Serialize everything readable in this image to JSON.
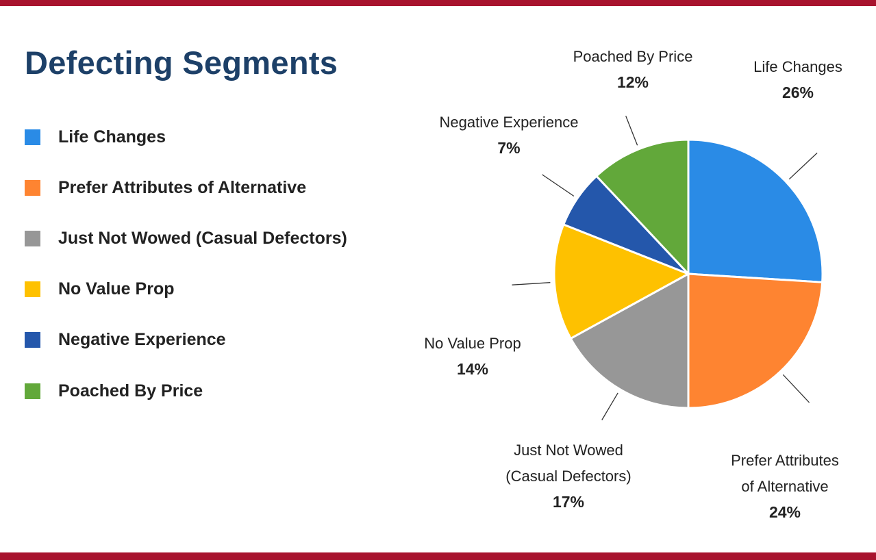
{
  "chart_data": {
    "type": "pie",
    "title": "Defecting Segments",
    "legend_position": "left",
    "slices": [
      {
        "name": "Life Changes",
        "label_lines": [
          "Life Changes"
        ],
        "pct_text": "26%",
        "value": 26,
        "color": "#2a8be6"
      },
      {
        "name": "Prefer Attributes of Alternative",
        "label_lines": [
          "Prefer Attributes",
          "of Alternative"
        ],
        "pct_text": "24%",
        "value": 24,
        "color": "#fe8431"
      },
      {
        "name": "Just Not Wowed (Casual Defectors)",
        "label_lines": [
          "Just Not Wowed",
          "(Casual Defectors)"
        ],
        "pct_text": "17%",
        "value": 17,
        "color": "#979797"
      },
      {
        "name": "No Value Prop",
        "label_lines": [
          "No Value Prop"
        ],
        "pct_text": "14%",
        "value": 14,
        "color": "#fec100"
      },
      {
        "name": "Negative Experience",
        "label_lines": [
          "Negative Experience"
        ],
        "pct_text": "7%",
        "value": 7,
        "color": "#2457ab"
      },
      {
        "name": "Poached By Price",
        "label_lines": [
          "Poached By Price"
        ],
        "pct_text": "12%",
        "value": 12,
        "color": "#62a83a"
      }
    ]
  }
}
